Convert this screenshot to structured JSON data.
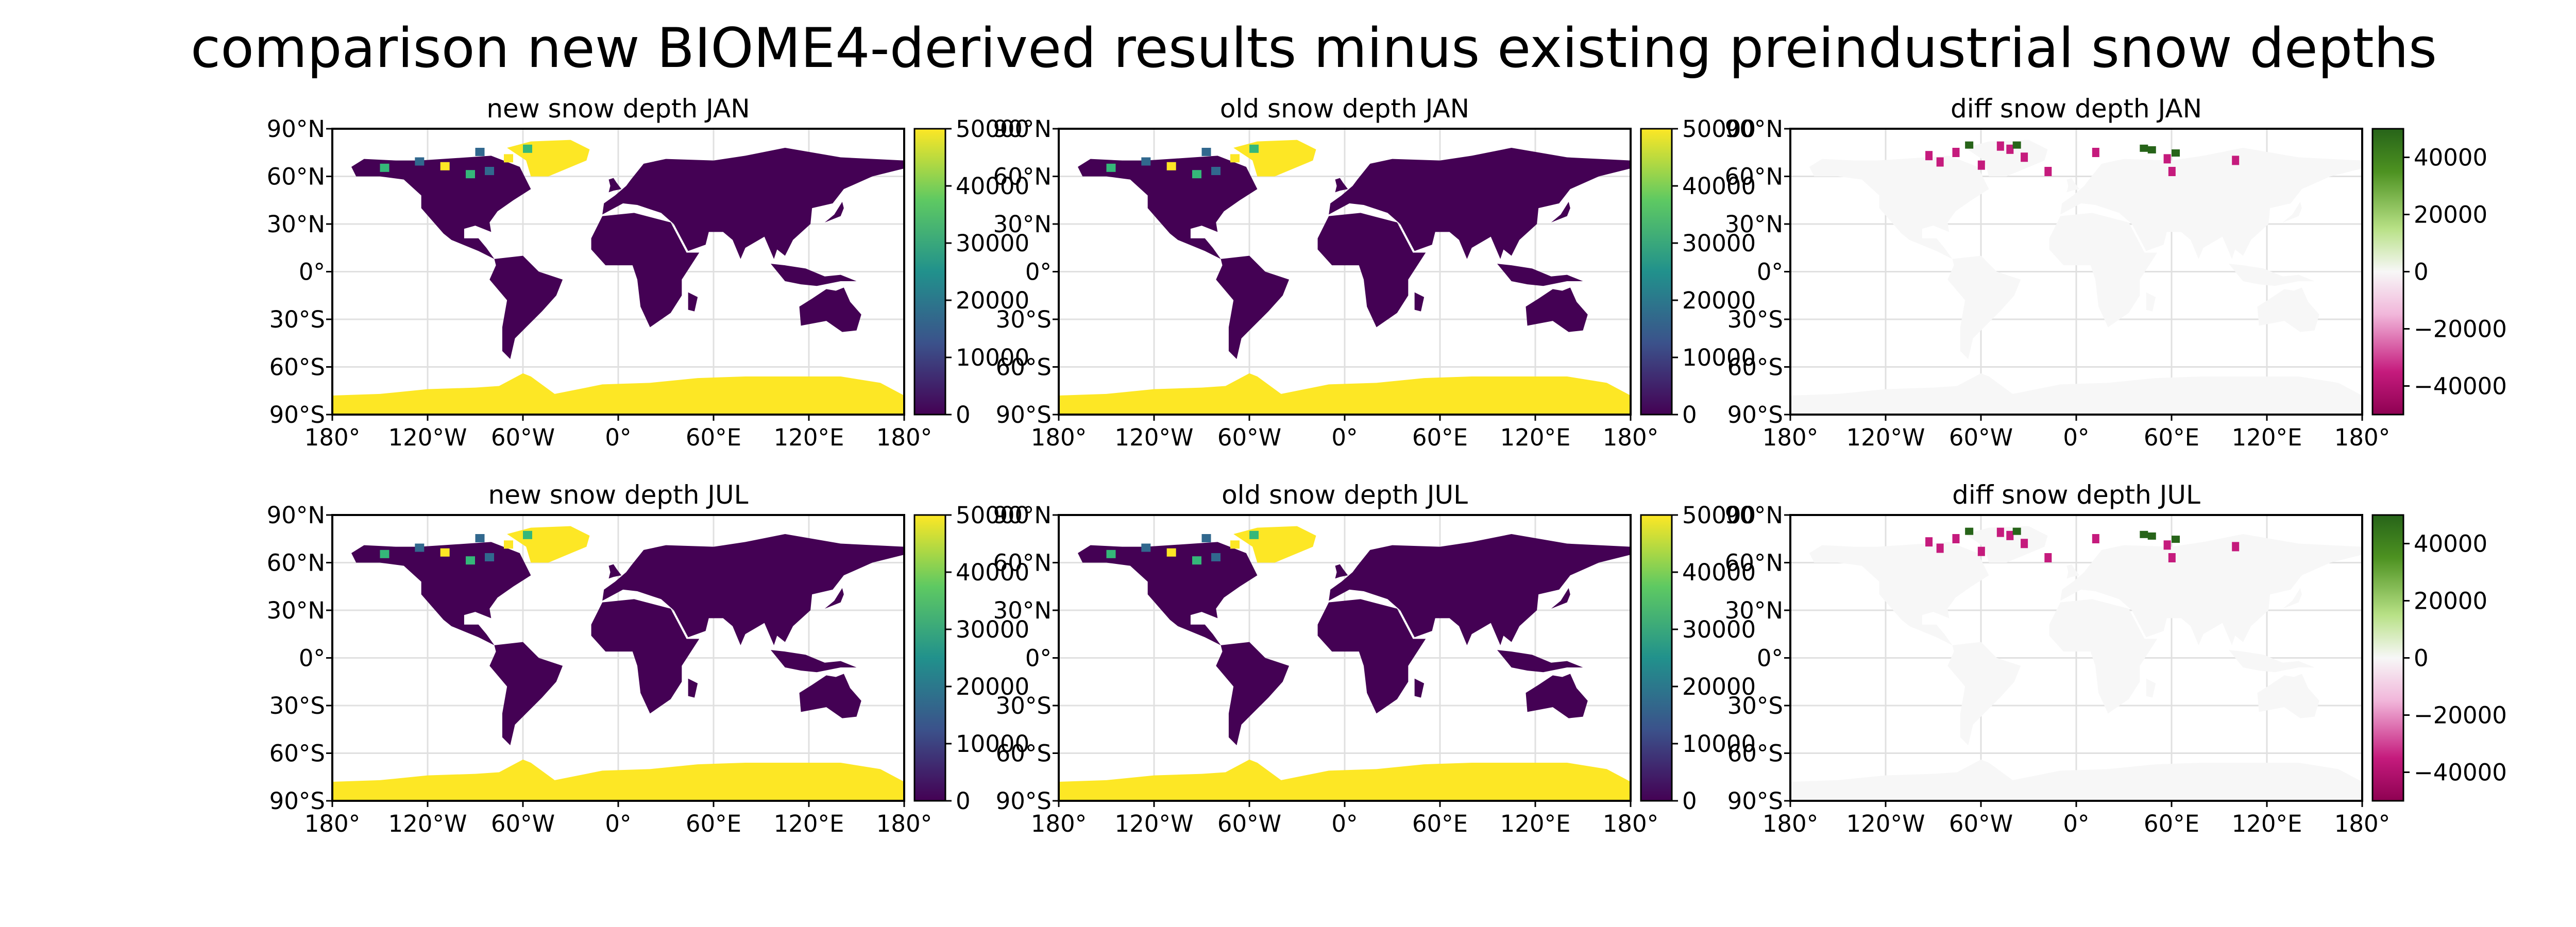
{
  "figure_title": "comparison new BIOME4-derived results minus existing preindustrial snow depths",
  "chart_data": [
    {
      "type": "heatmap",
      "title": "new snow depth JAN",
      "month": "JAN",
      "field": "new",
      "xlim": [
        -180,
        180
      ],
      "ylim": [
        -90,
        90
      ],
      "xticks": [
        "180°",
        "120°W",
        "60°W",
        "0°",
        "60°E",
        "120°E",
        "180°"
      ],
      "yticks": [
        "90°N",
        "60°N",
        "30°N",
        "0°",
        "30°S",
        "60°S",
        "90°S"
      ],
      "colorbar": {
        "colormap": "viridis",
        "range": [
          0,
          50000
        ],
        "ticks": [
          "0",
          "10000",
          "20000",
          "30000",
          "40000",
          "50000"
        ]
      },
      "values_description_levels": {
        "ice_sheets": 50000,
        "other_land": 0
      }
    },
    {
      "type": "heatmap",
      "title": "old snow depth JAN",
      "month": "JAN",
      "field": "old",
      "xlim": [
        -180,
        180
      ],
      "ylim": [
        -90,
        90
      ],
      "xticks": [
        "180°",
        "120°W",
        "60°W",
        "0°",
        "60°E",
        "120°E",
        "180°"
      ],
      "yticks": [
        "90°N",
        "60°N",
        "30°N",
        "0°",
        "30°S",
        "60°S",
        "90°S"
      ],
      "colorbar": {
        "colormap": "viridis",
        "range": [
          0,
          50000
        ],
        "ticks": [
          "0",
          "10000",
          "20000",
          "30000",
          "40000",
          "50000"
        ]
      },
      "values_description_levels": {
        "ice_sheets": 50000,
        "other_land": 0
      }
    },
    {
      "type": "heatmap",
      "title": "diff snow depth JAN",
      "month": "JAN",
      "field": "diff",
      "xlim": [
        -180,
        180
      ],
      "ylim": [
        -90,
        90
      ],
      "xticks": [
        "180°",
        "120°W",
        "60°W",
        "0°",
        "60°E",
        "120°E",
        "180°"
      ],
      "yticks": [
        "90°N",
        "60°N",
        "30°N",
        "0°",
        "30°S",
        "60°S",
        "90°S"
      ],
      "colorbar": {
        "colormap": "PiYG",
        "range": [
          -50000,
          50000
        ],
        "ticks": [
          "−40000",
          "−20000",
          "0",
          "20000",
          "40000"
        ]
      },
      "values_description_levels": {
        "most_land": 0,
        "negative_patches": -45000,
        "positive_patches": 45000
      }
    },
    {
      "type": "heatmap",
      "title": "new snow depth JUL",
      "month": "JUL",
      "field": "new",
      "xlim": [
        -180,
        180
      ],
      "ylim": [
        -90,
        90
      ],
      "xticks": [
        "180°",
        "120°W",
        "60°W",
        "0°",
        "60°E",
        "120°E",
        "180°"
      ],
      "yticks": [
        "90°N",
        "60°N",
        "30°N",
        "0°",
        "30°S",
        "60°S",
        "90°S"
      ],
      "colorbar": {
        "colormap": "viridis",
        "range": [
          0,
          50000
        ],
        "ticks": [
          "0",
          "10000",
          "20000",
          "30000",
          "40000",
          "50000"
        ]
      },
      "values_description_levels": {
        "ice_sheets": 50000,
        "other_land": 0
      }
    },
    {
      "type": "heatmap",
      "title": "old snow depth JUL",
      "month": "JUL",
      "field": "old",
      "xlim": [
        -180,
        180
      ],
      "ylim": [
        -90,
        90
      ],
      "xticks": [
        "180°",
        "120°W",
        "60°W",
        "0°",
        "60°E",
        "120°E",
        "180°"
      ],
      "yticks": [
        "90°N",
        "60°N",
        "30°N",
        "0°",
        "30°S",
        "60°S",
        "90°S"
      ],
      "colorbar": {
        "colormap": "viridis",
        "range": [
          0,
          50000
        ],
        "ticks": [
          "0",
          "10000",
          "20000",
          "30000",
          "40000",
          "50000"
        ]
      },
      "values_description_levels": {
        "ice_sheets": 50000,
        "other_land": 0
      }
    },
    {
      "type": "heatmap",
      "title": "diff snow depth JUL",
      "month": "JUL",
      "field": "diff",
      "xlim": [
        -180,
        180
      ],
      "ylim": [
        -90,
        90
      ],
      "xticks": [
        "180°",
        "120°W",
        "60°W",
        "0°",
        "60°E",
        "120°E",
        "180°"
      ],
      "yticks": [
        "90°N",
        "60°N",
        "30°N",
        "0°",
        "30°S",
        "60°S",
        "90°S"
      ],
      "colorbar": {
        "colormap": "PiYG",
        "range": [
          -50000,
          50000
        ],
        "ticks": [
          "−40000",
          "−20000",
          "0",
          "20000",
          "40000"
        ]
      },
      "values_description_levels": {
        "most_land": 0,
        "negative_patches": -45000,
        "positive_patches": 45000
      }
    }
  ],
  "colors": {
    "viridis_low": "#440154",
    "viridis_high": "#fde725",
    "diff_zero": "#f7f7f7",
    "diff_neg": "#c51b7d",
    "diff_pos": "#276419",
    "grid": "#e0e0e0"
  }
}
